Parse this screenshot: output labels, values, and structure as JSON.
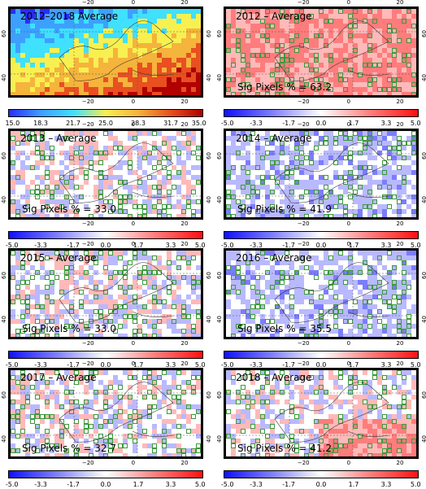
{
  "panels": [
    {
      "title": "2012–2018 Average",
      "sig": "",
      "scale": "abs",
      "ticks": [
        "15.0",
        "18.3",
        "21.7",
        "25.0",
        "28.3",
        "31.7",
        "35.0"
      ]
    },
    {
      "title": "2012 – Average",
      "sig": "Sig Pixels % = 63.2",
      "scale": "anom",
      "ticks": [
        "-5.0",
        "-3.3",
        "-1.7",
        "0.0",
        "1.7",
        "3.3",
        "5.0"
      ]
    },
    {
      "title": "2013 – Average",
      "sig": "Sig Pixels % = 33.0",
      "scale": "anom",
      "ticks": [
        "-5.0",
        "-3.3",
        "-1.7",
        "0.0",
        "1.7",
        "3.3",
        "5.0"
      ]
    },
    {
      "title": "2014 – Average",
      "sig": "Sig Pixels % = 41.9",
      "scale": "anom",
      "ticks": [
        "-5.0",
        "-3.3",
        "-1.7",
        "0.0",
        "1.7",
        "3.3",
        "5.0"
      ]
    },
    {
      "title": "2015 – Average",
      "sig": "Sig Pixels % = 33.0",
      "scale": "anom",
      "ticks": [
        "-5.0",
        "-3.3",
        "-1.7",
        "0.0",
        "1.7",
        "3.3",
        "5.0"
      ]
    },
    {
      "title": "2016 – Average",
      "sig": "Sig Pixels % = 35.5",
      "scale": "anom",
      "ticks": [
        "-5.0",
        "-3.3",
        "-1.7",
        "0.0",
        "1.7",
        "3.3",
        "5.0"
      ]
    },
    {
      "title": "2017 – Average",
      "sig": "Sig Pixels % = 32.7",
      "scale": "anom",
      "ticks": [
        "-5.0",
        "-3.3",
        "-1.7",
        "0.0",
        "1.7",
        "3.3",
        "5.0"
      ]
    },
    {
      "title": "2018 – Average",
      "sig": "Sig Pixels % = 41.2",
      "scale": "anom",
      "ticks": [
        "-5.0",
        "-3.3",
        "-1.7",
        "0.0",
        "1.7",
        "3.3",
        "5.0"
      ]
    }
  ],
  "lon_labels": [
    "−20",
    "0",
    "20"
  ],
  "lat_labels": [
    "60",
    "40"
  ],
  "colors": {
    "abs_scale": [
      "#2a2cff",
      "#3da0ff",
      "#40e0ff",
      "#f8f050",
      "#f5b43c",
      "#e85020",
      "#b00000"
    ],
    "anom_scale": [
      "#1010ff",
      "#8080ff",
      "#ffffff",
      "#ff8080",
      "#ff1010"
    ],
    "sig_outline": "#3a9a3a"
  }
}
